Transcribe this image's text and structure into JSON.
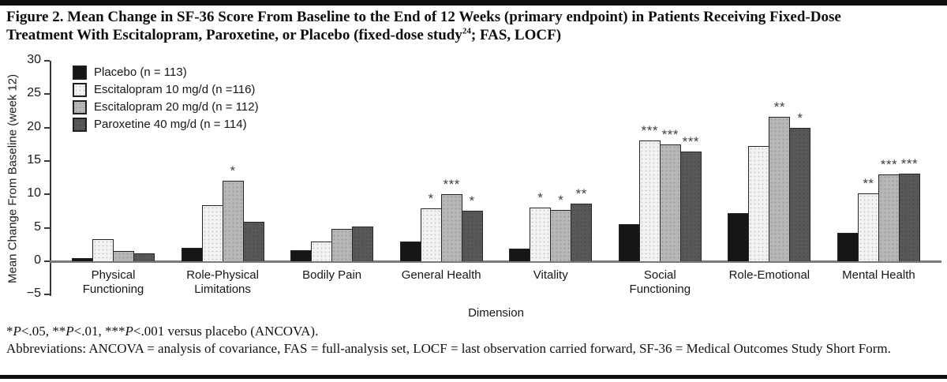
{
  "figure": {
    "title_line1": "Figure 2. Mean Change in SF-36 Score From Baseline to the End of 12 Weeks (primary endpoint) in Patients Receiving Fixed-Dose",
    "title_line2_pre": "Treatment With Escitalopram, Paroxetine, or Placebo (fixed-dose study",
    "title_line2_sup": "24",
    "title_line2_post": "; FAS, LOCF)"
  },
  "chart_data": {
    "type": "bar",
    "xlabel": "Dimension",
    "ylabel": "Mean Change From Baseline (week 12)",
    "ylim": [
      -5,
      30
    ],
    "yticks": [
      30,
      25,
      20,
      15,
      10,
      5,
      0,
      -5
    ],
    "grid": false,
    "legend_position": "top-left-inside",
    "categories": [
      "Physical Functioning",
      "Role-Physical Limitations",
      "Bodily Pain",
      "General Health",
      "Vitality",
      "Social Functioning",
      "Role-Emotional",
      "Mental Health"
    ],
    "category_label_lines": [
      [
        "Physical",
        "Functioning"
      ],
      [
        "Role-Physical",
        "Limitations"
      ],
      [
        "Bodily Pain"
      ],
      [
        "General Health"
      ],
      [
        "Vitality"
      ],
      [
        "Social",
        "Functioning"
      ],
      [
        "Role-Emotional"
      ],
      [
        "Mental Health"
      ]
    ],
    "series": [
      {
        "name": "Placebo (n = 113)",
        "color": "#161616",
        "textured": false,
        "values": [
          0.5,
          2.0,
          1.7,
          3.0,
          1.9,
          5.6,
          7.2,
          4.2
        ],
        "sig": [
          null,
          null,
          null,
          null,
          null,
          null,
          null,
          null
        ]
      },
      {
        "name": "Escitalopram 10 mg/d (n =116)",
        "color": "#f2f2f2",
        "textured": true,
        "values": [
          3.3,
          8.4,
          3.0,
          7.9,
          8.0,
          18.1,
          17.2,
          10.2
        ],
        "sig": [
          null,
          null,
          null,
          "*",
          "*",
          "***",
          null,
          "**"
        ]
      },
      {
        "name": "Escitalopram 20 mg/d (n = 112)",
        "color": "#b7b7b7",
        "textured": true,
        "values": [
          1.6,
          12.1,
          4.8,
          10.0,
          7.7,
          17.5,
          21.6,
          13.0
        ],
        "sig": [
          null,
          "*",
          null,
          "***",
          "*",
          "***",
          "**",
          "***"
        ]
      },
      {
        "name": "Paroxetine 40 mg/d (n = 114)",
        "color": "#585858",
        "textured": true,
        "values": [
          1.2,
          5.9,
          5.2,
          7.6,
          8.6,
          16.4,
          20.0,
          13.1
        ],
        "sig": [
          null,
          null,
          null,
          "*",
          "**",
          "***",
          "*",
          "***"
        ]
      }
    ]
  },
  "footnotes": {
    "significance": [
      {
        "stars": "*",
        "p": "P",
        "rest": "<.05, "
      },
      {
        "stars": "**",
        "p": "P",
        "rest": "<.01, "
      },
      {
        "stars": "***",
        "p": "P",
        "rest": "<.001 versus placebo (ANCOVA)."
      }
    ],
    "abbreviations": "Abbreviations: ANCOVA = analysis of covariance, FAS = full-analysis set, LOCF = last observation carried forward, SF-36 = Medical Outcomes Study Short Form."
  },
  "colors": {
    "axis": "#3a3a3a",
    "baseline": "#7a7a7a",
    "placebo": "#161616",
    "escitalopram10": "#f2f2f2",
    "escitalopram20": "#b7b7b7",
    "paroxetine40": "#585858",
    "rule": "#101010"
  }
}
